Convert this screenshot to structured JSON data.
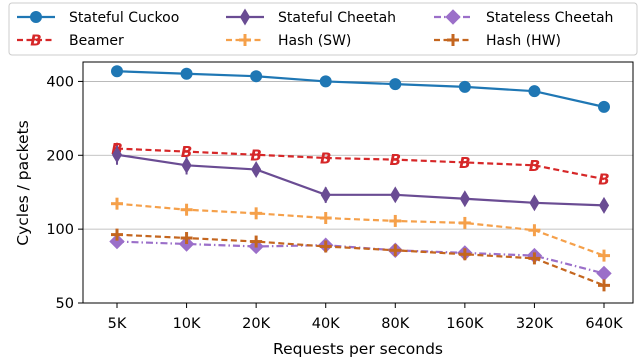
{
  "chart_data": {
    "type": "line",
    "xlabel": "Requests per seconds",
    "ylabel": "Cycles / packets",
    "y_scale": "log",
    "ylim": [
      50,
      480
    ],
    "grid": "horizontal",
    "legend_position": "top, 3 columns",
    "categories": [
      "5K",
      "10K",
      "20K",
      "40K",
      "80K",
      "160K",
      "320K",
      "640K"
    ],
    "y_ticks": [
      50,
      100,
      200,
      400
    ],
    "y_tick_labels": [
      "50",
      "100",
      "200",
      "400"
    ],
    "series": [
      {
        "name": "Stateful Cuckoo",
        "color": "#1f77b4",
        "linestyle": "solid",
        "marker": "circle",
        "values": [
          440,
          430,
          420,
          400,
          390,
          380,
          365,
          315
        ],
        "errors": [
          0,
          0,
          0,
          0,
          0,
          0,
          0,
          0
        ]
      },
      {
        "name": "Beamer",
        "color": "#d62728",
        "linestyle": "dashed",
        "marker": "B",
        "values": [
          213,
          207,
          201,
          195,
          192,
          187,
          182,
          160
        ],
        "errors": [
          12,
          0,
          0,
          0,
          0,
          0,
          0,
          0
        ]
      },
      {
        "name": "Stateful Cheetah",
        "color": "#6a4c93",
        "linestyle": "solid",
        "marker": "thin-diamond",
        "values": [
          201,
          182,
          175,
          138,
          138,
          133,
          128,
          125
        ],
        "errors": [
          18,
          15,
          6,
          10,
          6,
          6,
          6,
          7
        ]
      },
      {
        "name": "Hash (SW)",
        "color": "#f5a04a",
        "linestyle": "dashed",
        "marker": "plus",
        "values": [
          127,
          120,
          116,
          111,
          108,
          106,
          99,
          78
        ],
        "errors": [
          0,
          0,
          0,
          0,
          0,
          0,
          0,
          0
        ]
      },
      {
        "name": "Stateless Cheetah",
        "color": "#9b6fc9",
        "linestyle": "dashdot",
        "marker": "diamond",
        "values": [
          89,
          87,
          85,
          86,
          82,
          80,
          78,
          66
        ],
        "errors": [
          0,
          0,
          0,
          5,
          0,
          0,
          0,
          0
        ]
      },
      {
        "name": "Hash (HW)",
        "color": "#c4661f",
        "linestyle": "dashed",
        "marker": "plus",
        "values": [
          95,
          92,
          89,
          85,
          82,
          79,
          76,
          59
        ],
        "errors": [
          0,
          0,
          0,
          0,
          0,
          0,
          4,
          0
        ]
      }
    ]
  }
}
